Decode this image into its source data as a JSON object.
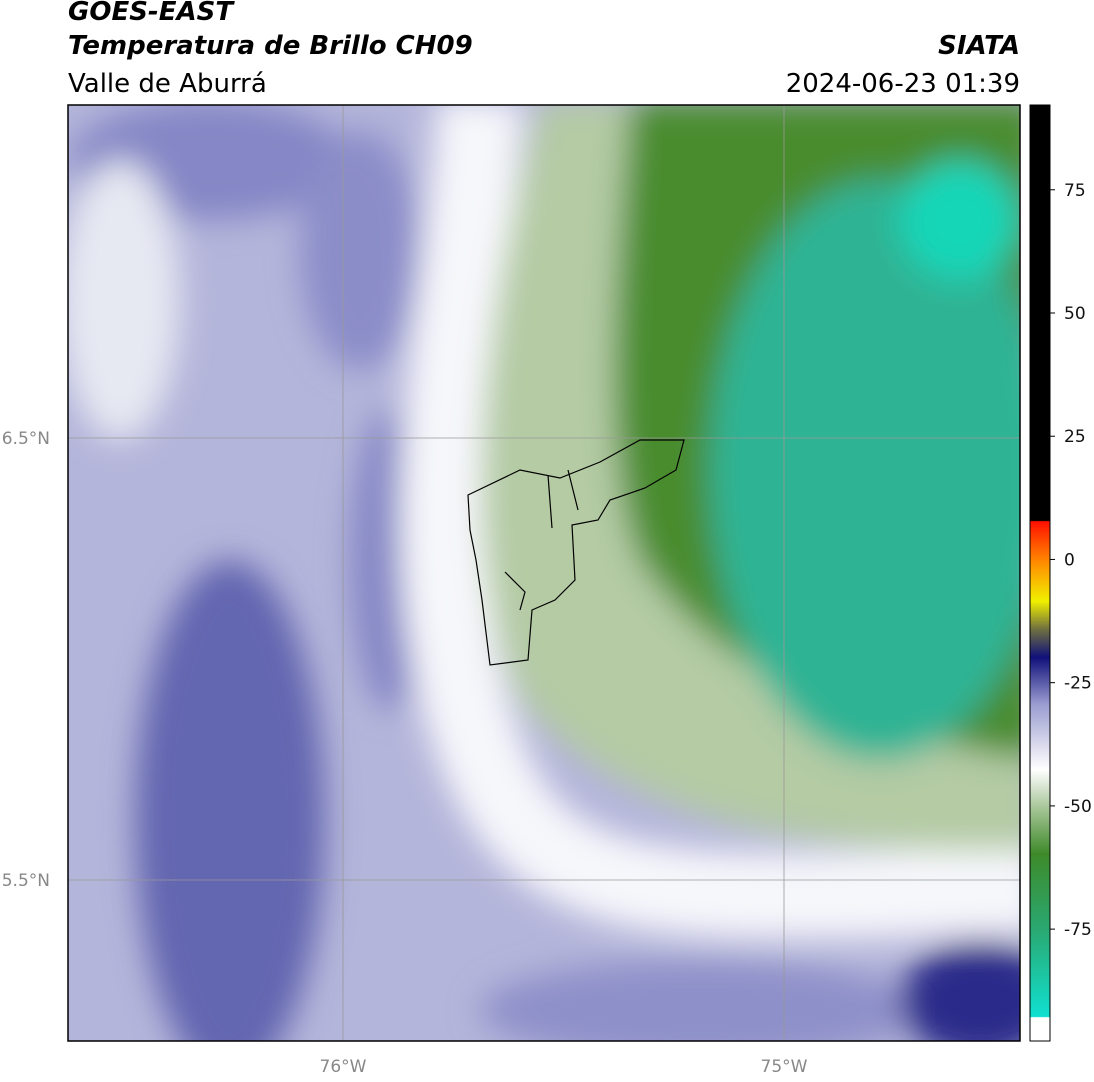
{
  "header": {
    "title": "GOES-EAST",
    "subtitle": "Temperatura de Brillo CH09",
    "region": "Valle de Aburrá",
    "source": "SIATA",
    "datetime": "2024-06-23 01:39"
  },
  "map": {
    "lon_labels": [
      "76°W",
      "75°W"
    ],
    "lat_labels": [
      "6.5°N",
      "5.5°N"
    ]
  },
  "colorbar": {
    "range": [
      -97.7,
      92.2
    ],
    "ticks": [
      75,
      50,
      25,
      0,
      -25,
      -50,
      -75
    ]
  }
}
